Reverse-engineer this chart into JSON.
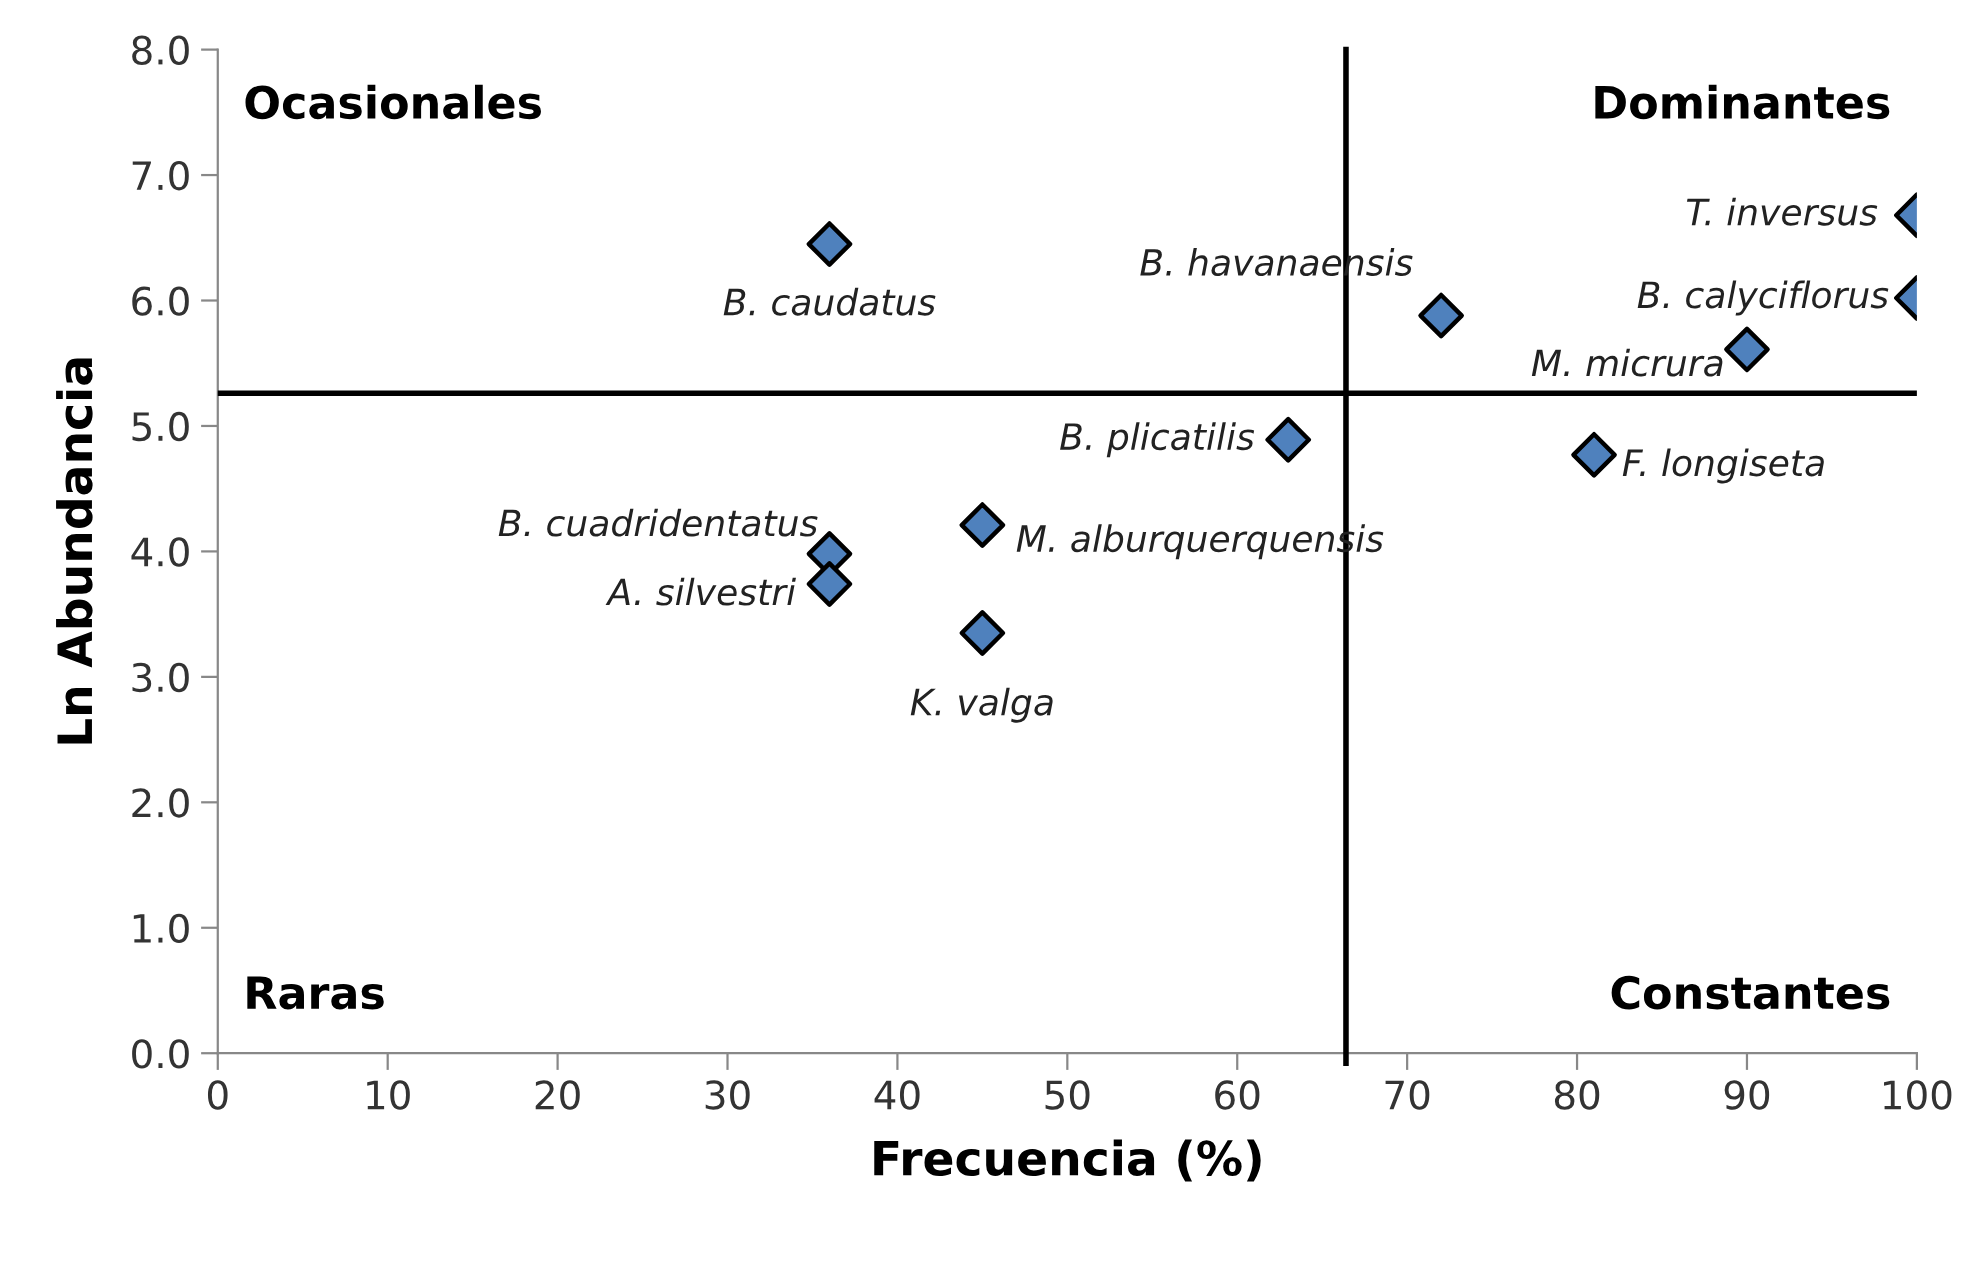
{
  "chart_data": {
    "type": "scatter",
    "xlabel": "Frecuencia (%)",
    "ylabel": "Ln Abundancia",
    "marker": "diamond",
    "grid": false,
    "series": [
      {
        "color": "#4f81bd",
        "x": [
          36,
          36,
          36,
          45,
          45,
          63,
          72,
          100,
          100,
          90,
          81
        ],
        "values": [
          6.45,
          3.98,
          3.74,
          4.21,
          3.35,
          4.89,
          5.88,
          6.68,
          6.02,
          5.61,
          4.77
        ]
      }
    ],
    "xlim": [
      0,
      100
    ],
    "xticks": [
      0,
      10,
      20,
      30,
      40,
      50,
      60,
      70,
      80,
      90,
      100
    ],
    "ylim": [
      0,
      8
    ],
    "yticks": [
      {
        "value": 0,
        "label": "0.0"
      },
      {
        "value": 1,
        "label": "1.0"
      },
      {
        "value": 2,
        "label": "2.0"
      },
      {
        "value": 3,
        "label": "3.0"
      },
      {
        "value": 4,
        "label": "4.0"
      },
      {
        "value": 5,
        "label": "5.0"
      },
      {
        "value": 6,
        "label": "6.0"
      },
      {
        "value": 7,
        "label": "7.0"
      },
      {
        "value": 8,
        "label": "8.0"
      }
    ],
    "ref_lines": [
      {
        "axis": "x",
        "value": 66.4,
        "color": "#000000"
      },
      {
        "axis": "y",
        "value": 5.26,
        "color": "#000000"
      }
    ],
    "annotations": [
      {
        "text": "B. caudatus",
        "x": 36,
        "y": 6.45
      },
      {
        "text": "B. cuadridentatus",
        "x": 36,
        "y": 3.98
      },
      {
        "text": "A. silvestri",
        "x": 36,
        "y": 3.74
      },
      {
        "text": "M. alburquerquensis",
        "x": 45,
        "y": 4.21
      },
      {
        "text": "K. valga",
        "x": 45,
        "y": 3.35
      },
      {
        "text": "B. plicatilis",
        "x": 63,
        "y": 4.89
      },
      {
        "text": "B. havanaensis",
        "x": 72,
        "y": 5.88
      },
      {
        "text": "T. inversus",
        "x": 100,
        "y": 6.68
      },
      {
        "text": "B. calyciflorus",
        "x": 100,
        "y": 6.02
      },
      {
        "text": "M. micrura",
        "x": 90,
        "y": 5.61
      },
      {
        "text": "F. longiseta",
        "x": 81,
        "y": 4.77
      },
      "Ocasionales",
      "Dominantes",
      "Raras",
      "Constantes"
    ]
  }
}
